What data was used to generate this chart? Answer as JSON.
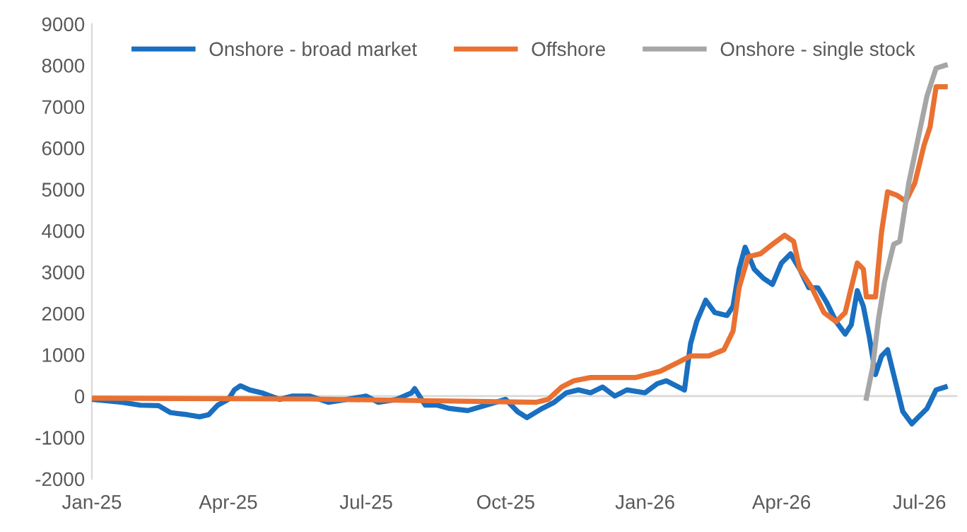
{
  "chart_data": {
    "type": "line",
    "legend": "top",
    "grid": false,
    "marker": "none",
    "line_style": "solid",
    "xlim": [
      "2025-01-01",
      "2026-07-26"
    ],
    "ylim": [
      -2000,
      9000
    ],
    "xticks": [
      {
        "value": "2025-01-01",
        "label": "Jan-25"
      },
      {
        "value": "2025-04-01",
        "label": "Apr-25"
      },
      {
        "value": "2025-07-01",
        "label": "Jul-25"
      },
      {
        "value": "2025-10-01",
        "label": "Oct-25"
      },
      {
        "value": "2026-01-01",
        "label": "Jan-26"
      },
      {
        "value": "2026-04-01",
        "label": "Apr-26"
      },
      {
        "value": "2026-07-01",
        "label": "Jul-26"
      }
    ],
    "yticks": [
      -2000,
      -1000,
      0,
      1000,
      2000,
      3000,
      4000,
      5000,
      6000,
      7000,
      8000,
      9000
    ],
    "ref_lines": [
      {
        "axis": "y",
        "value": 0,
        "label": null,
        "color": "#d9d9d9"
      }
    ],
    "series": [
      {
        "name": "Onshore - broad market",
        "color": "#1a6fc0",
        "x": [
          "2025-01-01",
          "2025-01-21",
          "2025-02-02",
          "2025-02-14",
          "2025-02-22",
          "2025-03-05",
          "2025-03-13",
          "2025-03-19",
          "2025-03-25",
          "2025-04-01",
          "2025-04-05",
          "2025-04-09",
          "2025-04-15",
          "2025-04-23",
          "2025-05-05",
          "2025-05-13",
          "2025-05-25",
          "2025-06-06",
          "2025-06-18",
          "2025-07-01",
          "2025-07-09",
          "2025-07-21",
          "2025-07-31",
          "2025-08-02",
          "2025-08-09",
          "2025-08-17",
          "2025-08-25",
          "2025-09-06",
          "2025-09-18",
          "2025-10-01",
          "2025-10-09",
          "2025-10-15",
          "2025-10-25",
          "2025-11-02",
          "2025-11-10",
          "2025-11-18",
          "2025-11-26",
          "2025-12-04",
          "2025-12-12",
          "2025-12-20",
          "2026-01-01",
          "2026-01-09",
          "2026-01-15",
          "2026-01-23",
          "2026-01-27",
          "2026-01-31",
          "2026-02-04",
          "2026-02-10",
          "2026-02-16",
          "2026-02-24",
          "2026-02-28",
          "2026-03-04",
          "2026-03-08",
          "2026-03-14",
          "2026-03-20",
          "2026-03-26",
          "2026-04-01",
          "2026-04-07",
          "2026-04-13",
          "2026-04-19",
          "2026-04-25",
          "2026-05-01",
          "2026-05-07",
          "2026-05-13",
          "2026-05-17",
          "2026-05-21",
          "2026-05-25",
          "2026-05-29",
          "2026-06-02",
          "2026-06-06",
          "2026-06-10",
          "2026-06-14",
          "2026-06-20",
          "2026-06-26",
          "2026-06-30",
          "2026-07-06",
          "2026-07-12",
          "2026-07-18"
        ],
        "values": [
          -80,
          -150,
          -220,
          -230,
          -400,
          -450,
          -500,
          -450,
          -220,
          -80,
          150,
          250,
          150,
          80,
          -80,
          0,
          0,
          -150,
          -80,
          0,
          -150,
          -80,
          80,
          180,
          -220,
          -220,
          -300,
          -350,
          -220,
          -80,
          -380,
          -520,
          -300,
          -150,
          80,
          150,
          80,
          220,
          0,
          150,
          80,
          300,
          370,
          220,
          150,
          1270,
          1800,
          2320,
          2020,
          1950,
          2170,
          3070,
          3600,
          3070,
          2850,
          2700,
          3220,
          3440,
          3070,
          2620,
          2620,
          2250,
          1800,
          1500,
          1720,
          2550,
          2170,
          1420,
          520,
          970,
          1120,
          520,
          -370,
          -670,
          -520,
          -300,
          150,
          220
        ]
      },
      {
        "name": "Offshore",
        "color": "#e97132",
        "x": [
          "2025-01-01",
          "2025-05-25",
          "2025-10-21",
          "2025-10-29",
          "2025-11-07",
          "2025-11-15",
          "2025-11-26",
          "2025-12-26",
          "2026-01-11",
          "2026-01-23",
          "2026-01-31",
          "2026-02-12",
          "2026-02-22",
          "2026-02-28",
          "2026-03-04",
          "2026-03-10",
          "2026-03-18",
          "2026-03-26",
          "2026-04-03",
          "2026-04-09",
          "2026-04-13",
          "2026-04-21",
          "2026-04-29",
          "2026-05-07",
          "2026-05-13",
          "2026-05-21",
          "2026-05-25",
          "2026-05-27",
          "2026-06-02",
          "2026-06-06",
          "2026-06-10",
          "2026-06-16",
          "2026-06-22",
          "2026-06-28",
          "2026-07-04",
          "2026-07-08",
          "2026-07-12",
          "2026-07-18"
        ],
        "values": [
          -50,
          -70,
          -150,
          -80,
          220,
          370,
          450,
          450,
          600,
          820,
          970,
          970,
          1120,
          1570,
          2620,
          3370,
          3440,
          3670,
          3890,
          3740,
          3070,
          2620,
          2020,
          1800,
          2020,
          3220,
          3070,
          2400,
          2400,
          3970,
          4940,
          4860,
          4710,
          5160,
          6060,
          6510,
          7480,
          7480
        ]
      },
      {
        "name": "Onshore - single stock",
        "color": "#a6a6a6",
        "x": [
          "2026-05-27",
          "2026-05-31",
          "2026-06-04",
          "2026-06-08",
          "2026-06-14",
          "2026-06-18",
          "2026-06-24",
          "2026-06-30",
          "2026-07-06",
          "2026-07-12",
          "2026-07-18"
        ],
        "values": [
          -50,
          670,
          1870,
          2770,
          3670,
          3740,
          5160,
          6210,
          7260,
          7930,
          8000
        ]
      }
    ]
  }
}
